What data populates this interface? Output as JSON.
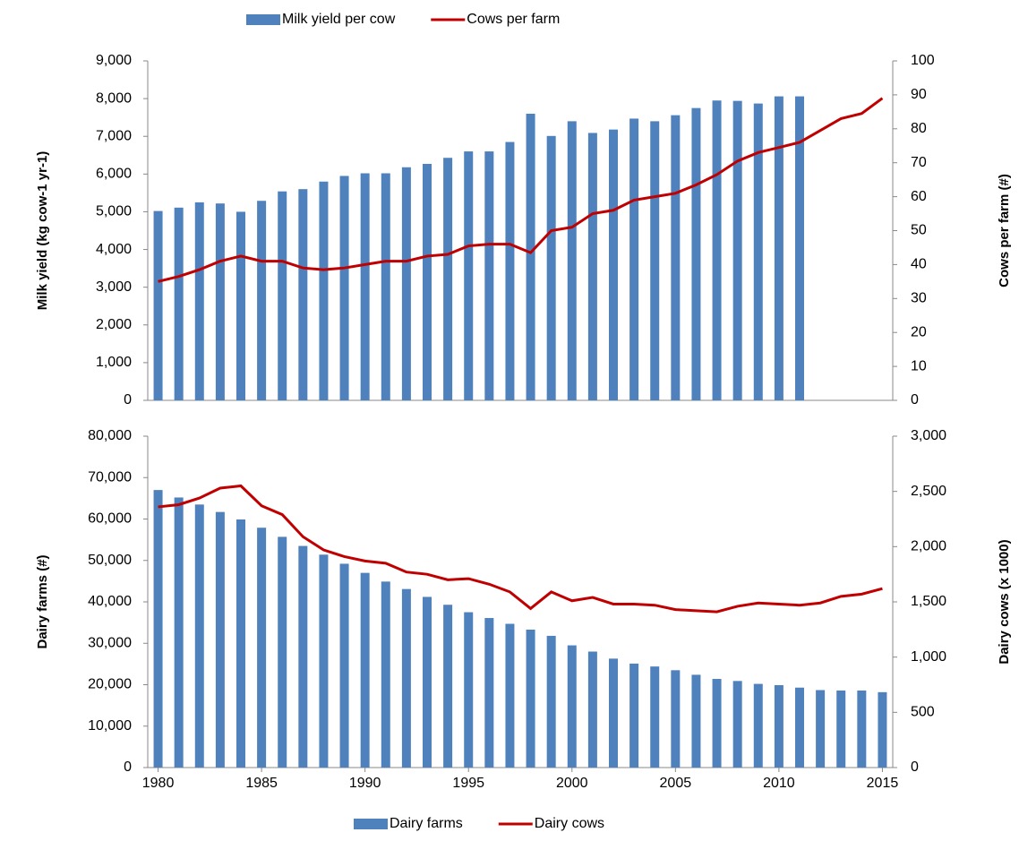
{
  "chart_data": [
    {
      "type": "bar+line",
      "x": [
        1980,
        1981,
        1982,
        1983,
        1984,
        1985,
        1986,
        1987,
        1988,
        1989,
        1990,
        1991,
        1992,
        1993,
        1994,
        1995,
        1996,
        1997,
        1998,
        1999,
        2000,
        2001,
        2002,
        2003,
        2004,
        2005,
        2006,
        2007,
        2008,
        2009,
        2010,
        2011,
        2012,
        2013,
        2014,
        2015
      ],
      "xlim": [
        1979.5,
        2015.5
      ],
      "y_label": "Milk yield (kg cow-1 yr-1)",
      "y2_label": "Cows per farm (#)",
      "ylim": [
        0,
        9000
      ],
      "yticks": [
        0,
        {
          "value": 1000,
          "label": "1,000"
        },
        {
          "value": 2000,
          "label": "2,000"
        },
        {
          "value": 3000,
          "label": "3,000"
        },
        {
          "value": 4000,
          "label": "4,000"
        },
        {
          "value": 5000,
          "label": "5,000"
        },
        {
          "value": 6000,
          "label": "6,000"
        },
        {
          "value": 7000,
          "label": "7,000"
        },
        {
          "value": 8000,
          "label": "8,000"
        },
        {
          "value": 9000,
          "label": "9,000"
        }
      ],
      "y2lim": [
        0,
        100
      ],
      "y2ticks": [
        0,
        10,
        20,
        30,
        40,
        50,
        60,
        70,
        80,
        90,
        100
      ],
      "legend": "top",
      "series": [
        {
          "name": "Milk yield per cow",
          "color": "#4f81bd",
          "kind": "bar",
          "values": [
            5020,
            5110,
            5250,
            5220,
            5000,
            5290,
            5540,
            5600,
            5800,
            5950,
            6020,
            6020,
            6180,
            6270,
            6430,
            6600,
            6600,
            6850,
            7600,
            7010,
            7400,
            7090,
            7180,
            7470,
            7400,
            7560,
            7750,
            7950,
            7940,
            7870,
            8060,
            8060,
            null,
            null,
            null,
            null
          ]
        },
        {
          "name": "Cows per farm",
          "color": "#c00000",
          "kind": "line",
          "axis": "y2",
          "values": [
            35,
            36.5,
            38.5,
            41,
            42.5,
            41,
            41,
            39,
            38.5,
            39,
            40,
            41,
            41,
            42.5,
            43,
            45.5,
            46,
            46,
            43.5,
            50,
            51,
            55,
            56,
            59,
            60,
            61,
            63.5,
            66.5,
            70.5,
            73,
            74.5,
            76,
            79.5,
            83,
            84.5,
            89
          ]
        }
      ]
    },
    {
      "type": "bar+line",
      "x": [
        1980,
        1981,
        1982,
        1983,
        1984,
        1985,
        1986,
        1987,
        1988,
        1989,
        1990,
        1991,
        1992,
        1993,
        1994,
        1995,
        1996,
        1997,
        1998,
        1999,
        2000,
        2001,
        2002,
        2003,
        2004,
        2005,
        2006,
        2007,
        2008,
        2009,
        2010,
        2011,
        2012,
        2013,
        2014,
        2015
      ],
      "xlim": [
        1979.5,
        2015.5
      ],
      "xticks": [
        1980,
        1985,
        1990,
        1995,
        2000,
        2005,
        2010,
        2015
      ],
      "y_label": "Dairy farms (#)",
      "y2_label": "Dairy cows (x 1000)",
      "ylim": [
        0,
        80000
      ],
      "yticks": [
        0,
        {
          "value": 10000,
          "label": "10,000"
        },
        {
          "value": 20000,
          "label": "20,000"
        },
        {
          "value": 30000,
          "label": "30,000"
        },
        {
          "value": 40000,
          "label": "40,000"
        },
        {
          "value": 50000,
          "label": "50,000"
        },
        {
          "value": 60000,
          "label": "60,000"
        },
        {
          "value": 70000,
          "label": "70,000"
        },
        {
          "value": 80000,
          "label": "80,000"
        }
      ],
      "y2lim": [
        0,
        3000
      ],
      "y2ticks": [
        0,
        500,
        {
          "value": 1000,
          "label": "1,000"
        },
        {
          "value": 1500,
          "label": "1,500"
        },
        {
          "value": 2000,
          "label": "2,000"
        },
        {
          "value": 2500,
          "label": "2,500"
        },
        {
          "value": 3000,
          "label": "3,000"
        }
      ],
      "legend": "bottom",
      "series": [
        {
          "name": "Dairy farms",
          "color": "#4f81bd",
          "kind": "bar",
          "values": [
            67000,
            65200,
            63500,
            61700,
            59900,
            57900,
            55700,
            53500,
            51400,
            49200,
            47000,
            44900,
            43100,
            41200,
            39300,
            37500,
            36100,
            34700,
            33300,
            31800,
            29500,
            28000,
            26300,
            25100,
            24400,
            23500,
            22400,
            21400,
            20900,
            20200,
            19900,
            19300,
            18700,
            18600,
            18600,
            18200
          ]
        },
        {
          "name": "Dairy cows",
          "color": "#c00000",
          "kind": "line",
          "axis": "y2",
          "values": [
            2360,
            2380,
            2440,
            2530,
            2550,
            2370,
            2290,
            2090,
            1970,
            1910,
            1870,
            1850,
            1770,
            1750,
            1700,
            1710,
            1660,
            1590,
            1440,
            1590,
            1510,
            1540,
            1480,
            1480,
            1470,
            1430,
            1420,
            1410,
            1460,
            1490,
            1480,
            1470,
            1490,
            1550,
            1570,
            1620
          ]
        }
      ]
    }
  ]
}
